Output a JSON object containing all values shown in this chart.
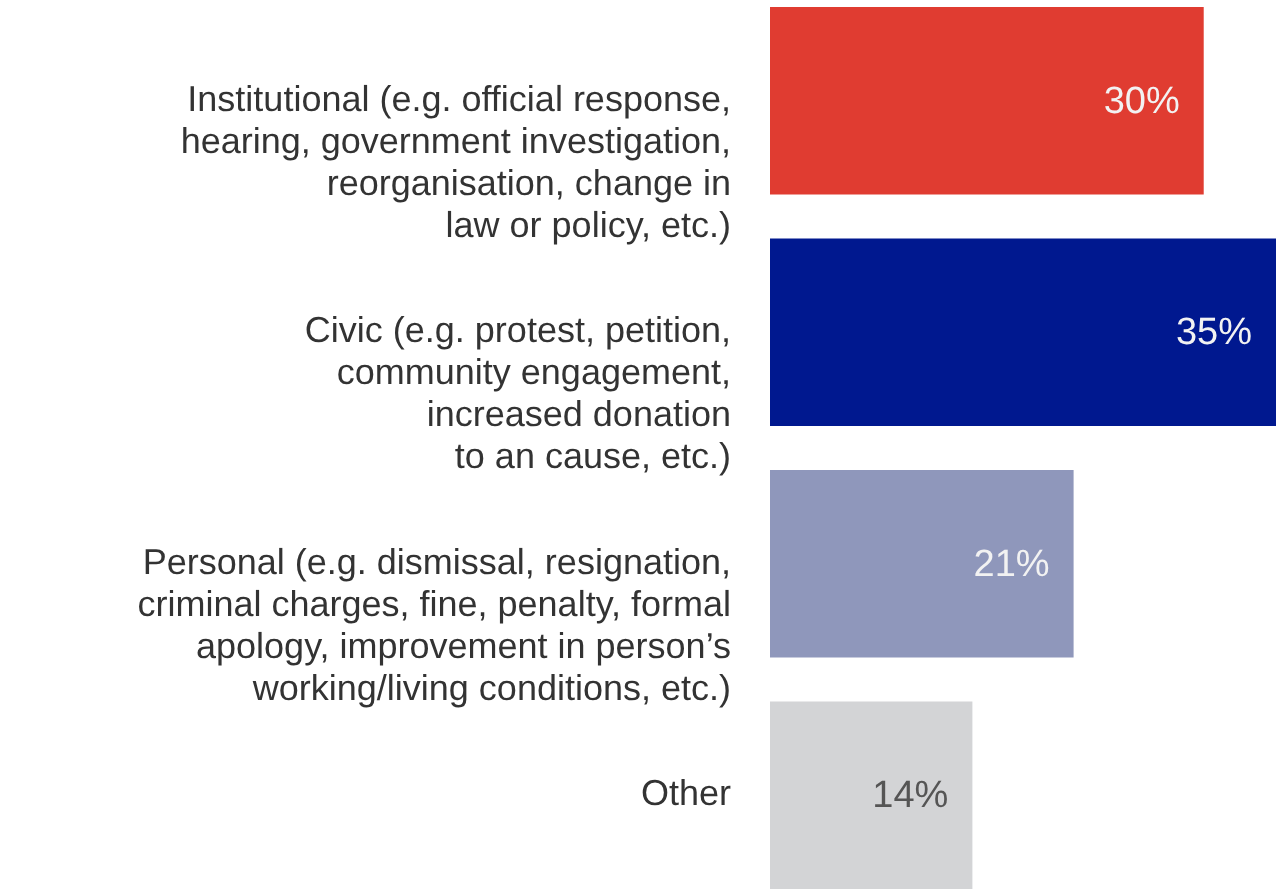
{
  "chart_data": {
    "type": "bar",
    "orientation": "horizontal",
    "categories": [
      "Institutional (e.g. official response,\nhearing, government investigation,\nreorganisation, change in\nlaw or policy, etc.)",
      "Civic (e.g. protest, petition,\ncommunity engagement,\nincreased donation\nto an cause, etc.)",
      "Personal (e.g. dismissal, resignation,\ncriminal charges, fine, penalty, formal\napology, improvement in person’s\nworking/living conditions, etc.)",
      "Other"
    ],
    "values": [
      30,
      35,
      21,
      14
    ],
    "value_labels": [
      "30%",
      "35%",
      "21%",
      "14%"
    ],
    "colors": [
      "#e03c31",
      "#00188f",
      "#8f97bb",
      "#d3d4d6"
    ],
    "xlim": [
      0,
      35
    ],
    "tick_labels": "y"
  }
}
